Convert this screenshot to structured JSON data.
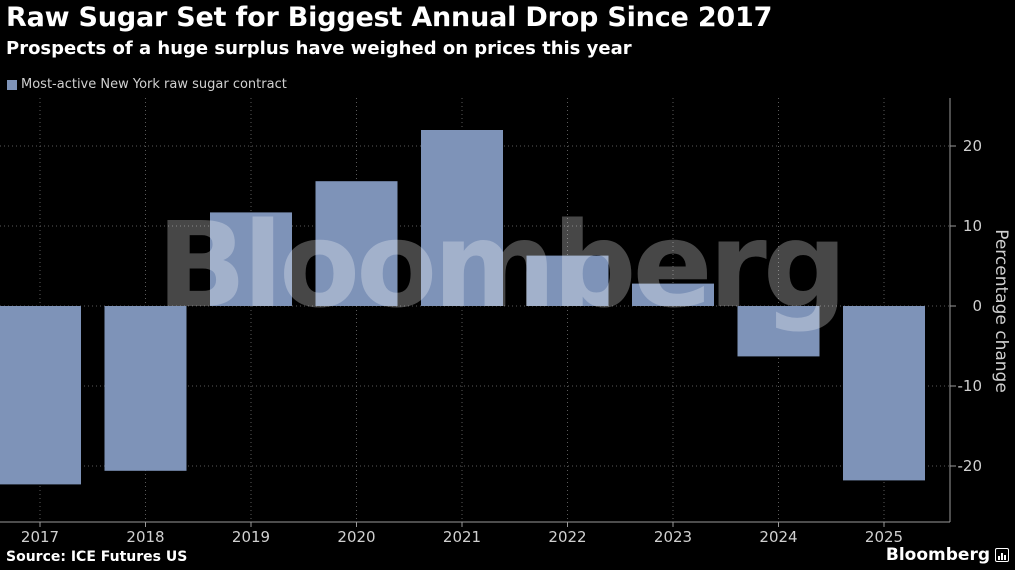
{
  "title": "Raw Sugar Set for Biggest Annual Drop Since 2017",
  "subtitle": "Prospects of a huge surplus have weighed on prices this year",
  "legend": {
    "label": "Most-active New York raw sugar contract",
    "color": "#7e93b8"
  },
  "watermark": "Bloomberg",
  "source": "Source: ICE Futures US",
  "brand": "Bloomberg",
  "colors": {
    "bar": "#7e93b8",
    "background": "#000000",
    "grid": "#5a5a5a",
    "axis_text": "#d0d0d0"
  },
  "chart_data": {
    "type": "bar",
    "categories": [
      "2017",
      "2018",
      "2019",
      "2020",
      "2021",
      "2022",
      "2023",
      "2024",
      "2025"
    ],
    "series": [
      {
        "name": "Most-active New York raw sugar contract",
        "values": [
          -22.3,
          -20.6,
          11.7,
          15.6,
          22.0,
          6.3,
          2.8,
          -6.3,
          -21.8
        ]
      }
    ],
    "ylabel": "Percentage change",
    "ylim": [
      -27,
      26
    ],
    "yticks": [
      -20,
      -10,
      0,
      10,
      20
    ],
    "ytick_labels": [
      "-20",
      "-10",
      "0",
      "10",
      "20"
    ],
    "y_axis_side": "right",
    "grid": true,
    "legend_position": "top-left"
  }
}
